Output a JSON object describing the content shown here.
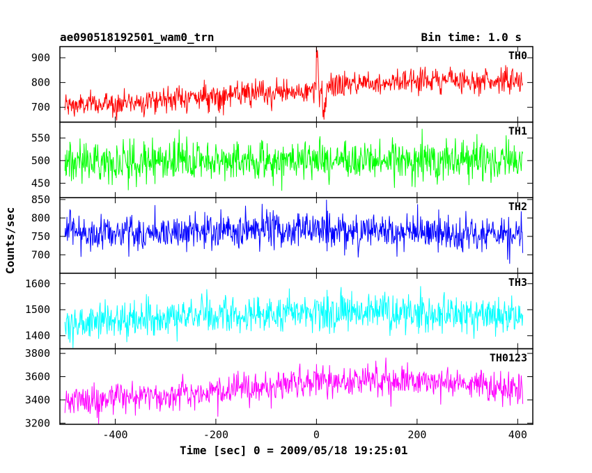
{
  "header": {
    "left": "ae090518192501_wam0_trn",
    "right": "Bin time: 1.0 s"
  },
  "chart_data": {
    "type": "line",
    "xlabel": "Time [sec] 0 = 2009/05/18 19:25:01",
    "ylabel": "Counts/sec",
    "xlim": [
      -510,
      430
    ],
    "x_ticks": [
      -400,
      -200,
      0,
      200,
      400
    ],
    "x_range_data": [
      -500,
      410
    ],
    "bin_time_s": 1.0,
    "panels": [
      {
        "name": "TH0",
        "color": "#ff0000",
        "ylim": [
          640,
          945
        ],
        "y_ticks": [
          700,
          800,
          900
        ],
        "trend": [
          [
            -500,
            705
          ],
          [
            -400,
            715
          ],
          [
            -300,
            735
          ],
          [
            -200,
            745
          ],
          [
            -100,
            755
          ],
          [
            -10,
            765
          ],
          [
            0,
            770
          ],
          [
            40,
            790
          ],
          [
            100,
            800
          ],
          [
            200,
            810
          ],
          [
            300,
            810
          ],
          [
            410,
            805
          ]
        ],
        "noise_sd": 25,
        "feature": "burst spike near t=0 reaching ~940"
      },
      {
        "name": "TH1",
        "color": "#00ff00",
        "ylim": [
          418,
          585
        ],
        "y_ticks": [
          450,
          500,
          550
        ],
        "trend": [
          [
            -500,
            498
          ],
          [
            410,
            502
          ]
        ],
        "noise_sd": 22
      },
      {
        "name": "TH2",
        "color": "#0000ff",
        "ylim": [
          650,
          855
        ],
        "y_ticks": [
          700,
          750,
          800,
          850
        ],
        "trend": [
          [
            -500,
            762
          ],
          [
            -300,
            760
          ],
          [
            -100,
            768
          ],
          [
            0,
            770
          ],
          [
            100,
            765
          ],
          [
            200,
            758
          ],
          [
            300,
            752
          ],
          [
            410,
            748
          ]
        ],
        "noise_sd": 25
      },
      {
        "name": "TH3",
        "color": "#00ffff",
        "ylim": [
          1350,
          1640
        ],
        "y_ticks": [
          1400,
          1500,
          1600
        ],
        "trend": [
          [
            -500,
            1445
          ],
          [
            -300,
            1470
          ],
          [
            -100,
            1485
          ],
          [
            0,
            1490
          ],
          [
            200,
            1490
          ],
          [
            410,
            1475
          ]
        ],
        "noise_sd": 35
      },
      {
        "name": "TH0123",
        "color": "#ff00ff",
        "ylim": [
          3190,
          3840
        ],
        "y_ticks": [
          3200,
          3400,
          3600,
          3800
        ],
        "trend": [
          [
            -500,
            3390
          ],
          [
            -300,
            3440
          ],
          [
            -100,
            3510
          ],
          [
            -10,
            3530
          ],
          [
            0,
            3560
          ],
          [
            100,
            3580
          ],
          [
            200,
            3560
          ],
          [
            300,
            3540
          ],
          [
            410,
            3500
          ]
        ],
        "noise_sd": 65
      }
    ]
  }
}
